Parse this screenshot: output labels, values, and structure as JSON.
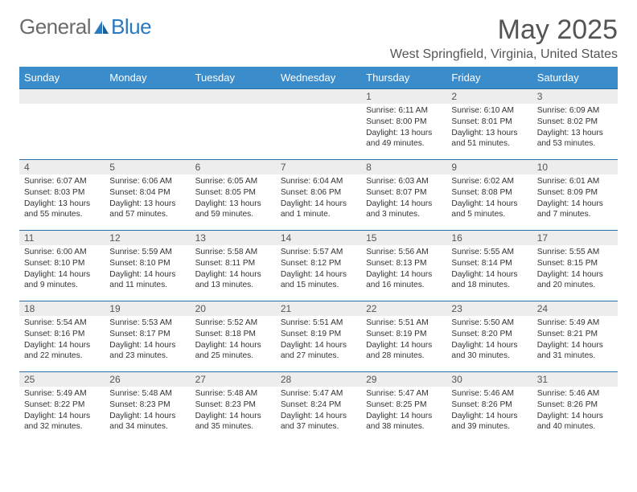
{
  "logo": {
    "text1": "General",
    "text2": "Blue"
  },
  "title": "May 2025",
  "location": "West Springfield, Virginia, United States",
  "colors": {
    "header_bg": "#3b8cca",
    "header_text": "#ffffff",
    "row_border": "#2b6fa8",
    "daynum_bg": "#ededed",
    "logo_gray": "#6b6b6b",
    "logo_blue": "#2b79bf"
  },
  "weekdays": [
    "Sunday",
    "Monday",
    "Tuesday",
    "Wednesday",
    "Thursday",
    "Friday",
    "Saturday"
  ],
  "weeks": [
    [
      null,
      null,
      null,
      null,
      {
        "n": "1",
        "sr": "6:11 AM",
        "ss": "8:00 PM",
        "dl": "13 hours and 49 minutes."
      },
      {
        "n": "2",
        "sr": "6:10 AM",
        "ss": "8:01 PM",
        "dl": "13 hours and 51 minutes."
      },
      {
        "n": "3",
        "sr": "6:09 AM",
        "ss": "8:02 PM",
        "dl": "13 hours and 53 minutes."
      }
    ],
    [
      {
        "n": "4",
        "sr": "6:07 AM",
        "ss": "8:03 PM",
        "dl": "13 hours and 55 minutes."
      },
      {
        "n": "5",
        "sr": "6:06 AM",
        "ss": "8:04 PM",
        "dl": "13 hours and 57 minutes."
      },
      {
        "n": "6",
        "sr": "6:05 AM",
        "ss": "8:05 PM",
        "dl": "13 hours and 59 minutes."
      },
      {
        "n": "7",
        "sr": "6:04 AM",
        "ss": "8:06 PM",
        "dl": "14 hours and 1 minute."
      },
      {
        "n": "8",
        "sr": "6:03 AM",
        "ss": "8:07 PM",
        "dl": "14 hours and 3 minutes."
      },
      {
        "n": "9",
        "sr": "6:02 AM",
        "ss": "8:08 PM",
        "dl": "14 hours and 5 minutes."
      },
      {
        "n": "10",
        "sr": "6:01 AM",
        "ss": "8:09 PM",
        "dl": "14 hours and 7 minutes."
      }
    ],
    [
      {
        "n": "11",
        "sr": "6:00 AM",
        "ss": "8:10 PM",
        "dl": "14 hours and 9 minutes."
      },
      {
        "n": "12",
        "sr": "5:59 AM",
        "ss": "8:10 PM",
        "dl": "14 hours and 11 minutes."
      },
      {
        "n": "13",
        "sr": "5:58 AM",
        "ss": "8:11 PM",
        "dl": "14 hours and 13 minutes."
      },
      {
        "n": "14",
        "sr": "5:57 AM",
        "ss": "8:12 PM",
        "dl": "14 hours and 15 minutes."
      },
      {
        "n": "15",
        "sr": "5:56 AM",
        "ss": "8:13 PM",
        "dl": "14 hours and 16 minutes."
      },
      {
        "n": "16",
        "sr": "5:55 AM",
        "ss": "8:14 PM",
        "dl": "14 hours and 18 minutes."
      },
      {
        "n": "17",
        "sr": "5:55 AM",
        "ss": "8:15 PM",
        "dl": "14 hours and 20 minutes."
      }
    ],
    [
      {
        "n": "18",
        "sr": "5:54 AM",
        "ss": "8:16 PM",
        "dl": "14 hours and 22 minutes."
      },
      {
        "n": "19",
        "sr": "5:53 AM",
        "ss": "8:17 PM",
        "dl": "14 hours and 23 minutes."
      },
      {
        "n": "20",
        "sr": "5:52 AM",
        "ss": "8:18 PM",
        "dl": "14 hours and 25 minutes."
      },
      {
        "n": "21",
        "sr": "5:51 AM",
        "ss": "8:19 PM",
        "dl": "14 hours and 27 minutes."
      },
      {
        "n": "22",
        "sr": "5:51 AM",
        "ss": "8:19 PM",
        "dl": "14 hours and 28 minutes."
      },
      {
        "n": "23",
        "sr": "5:50 AM",
        "ss": "8:20 PM",
        "dl": "14 hours and 30 minutes."
      },
      {
        "n": "24",
        "sr": "5:49 AM",
        "ss": "8:21 PM",
        "dl": "14 hours and 31 minutes."
      }
    ],
    [
      {
        "n": "25",
        "sr": "5:49 AM",
        "ss": "8:22 PM",
        "dl": "14 hours and 32 minutes."
      },
      {
        "n": "26",
        "sr": "5:48 AM",
        "ss": "8:23 PM",
        "dl": "14 hours and 34 minutes."
      },
      {
        "n": "27",
        "sr": "5:48 AM",
        "ss": "8:23 PM",
        "dl": "14 hours and 35 minutes."
      },
      {
        "n": "28",
        "sr": "5:47 AM",
        "ss": "8:24 PM",
        "dl": "14 hours and 37 minutes."
      },
      {
        "n": "29",
        "sr": "5:47 AM",
        "ss": "8:25 PM",
        "dl": "14 hours and 38 minutes."
      },
      {
        "n": "30",
        "sr": "5:46 AM",
        "ss": "8:26 PM",
        "dl": "14 hours and 39 minutes."
      },
      {
        "n": "31",
        "sr": "5:46 AM",
        "ss": "8:26 PM",
        "dl": "14 hours and 40 minutes."
      }
    ]
  ],
  "labels": {
    "sunrise": "Sunrise: ",
    "sunset": "Sunset: ",
    "daylight": "Daylight: "
  }
}
